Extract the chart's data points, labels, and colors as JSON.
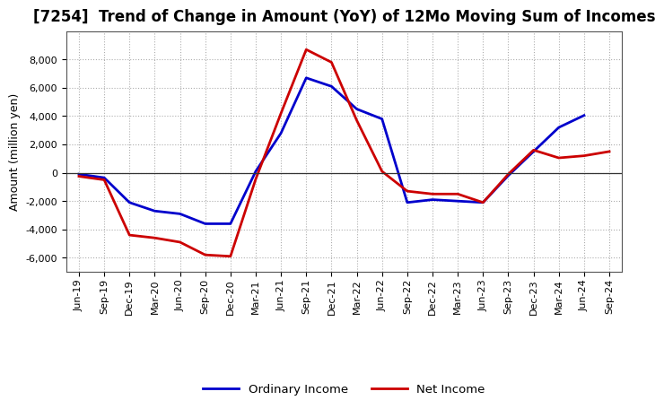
{
  "title": "[7254]  Trend of Change in Amount (YoY) of 12Mo Moving Sum of Incomes",
  "ylabel": "Amount (million yen)",
  "xlabels": [
    "Jun-19",
    "Sep-19",
    "Dec-19",
    "Mar-20",
    "Jun-20",
    "Sep-20",
    "Dec-20",
    "Mar-21",
    "Jun-21",
    "Sep-21",
    "Dec-21",
    "Mar-22",
    "Jun-22",
    "Sep-22",
    "Dec-22",
    "Mar-23",
    "Jun-23",
    "Sep-23",
    "Dec-23",
    "Mar-24",
    "Jun-24",
    "Sep-24"
  ],
  "ordinary_income": [
    -100,
    -350,
    -2100,
    -2700,
    -2900,
    -3600,
    -3600,
    100,
    2800,
    6700,
    6100,
    4500,
    3800,
    -2100,
    -1900,
    -2000,
    -2100,
    -200,
    1500,
    3200,
    4050,
    null
  ],
  "net_income": [
    -250,
    -500,
    -4400,
    -4600,
    -4900,
    -5800,
    -5900,
    -450,
    4200,
    8700,
    7800,
    3700,
    100,
    -1300,
    -1500,
    -1500,
    -2100,
    -100,
    1600,
    1050,
    1200,
    1500
  ],
  "ylim": [
    -7000,
    10000
  ],
  "yticks": [
    -6000,
    -4000,
    -2000,
    0,
    2000,
    4000,
    6000,
    8000
  ],
  "ordinary_color": "#0000cc",
  "net_color": "#cc0000",
  "background_color": "#ffffff",
  "grid_color": "#999999",
  "legend_ordinary": "Ordinary Income",
  "legend_net": "Net Income",
  "title_fontsize": 12,
  "axis_fontsize": 9,
  "tick_fontsize": 8
}
